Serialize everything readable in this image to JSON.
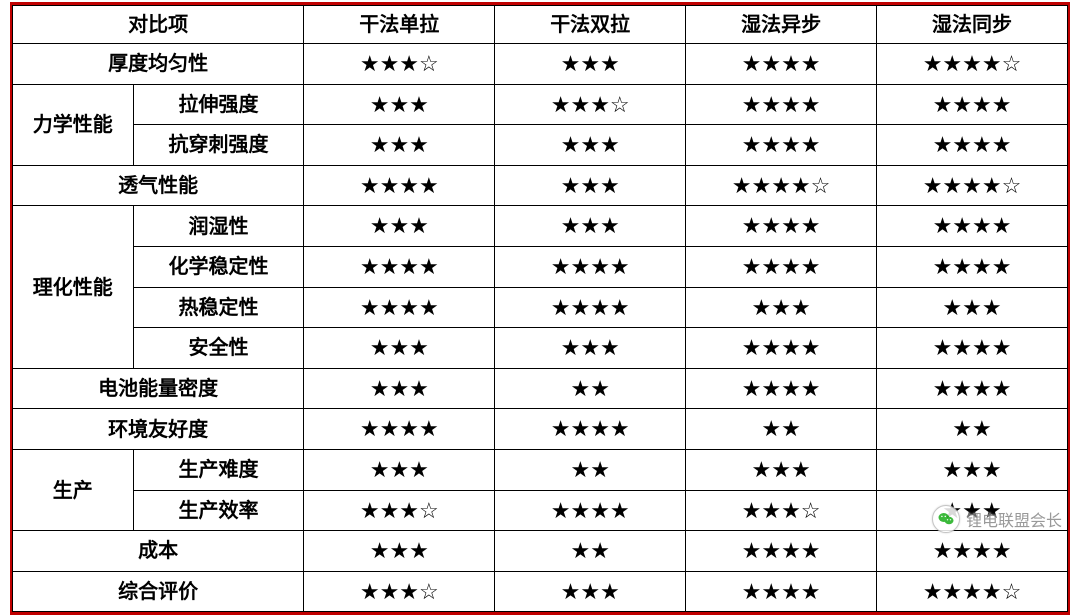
{
  "table": {
    "columns": [
      {
        "key": "compare",
        "label_main": "对比项",
        "label_sub": ""
      },
      {
        "key": "dry_uni",
        "label": "干法单拉"
      },
      {
        "key": "dry_bi",
        "label": "干法双拉"
      },
      {
        "key": "wet_async",
        "label": "湿法异步"
      },
      {
        "key": "wet_sync",
        "label": "湿法同步"
      }
    ],
    "header_compare": "对比项",
    "data_cols": [
      "干法单拉",
      "干法双拉",
      "湿法异步",
      "湿法同步"
    ],
    "rows": [
      {
        "group": null,
        "sub": "厚度均匀性",
        "span_both": true,
        "ratings": [
          3.5,
          3,
          4,
          4.5
        ]
      },
      {
        "group": "力学性能",
        "group_rowspan": 2,
        "sub": "拉伸强度",
        "ratings": [
          3,
          3.5,
          4,
          4
        ]
      },
      {
        "group": null,
        "sub": "抗穿刺强度",
        "ratings": [
          3,
          3,
          4,
          4
        ]
      },
      {
        "group": null,
        "sub": "透气性能",
        "span_both": true,
        "ratings": [
          4,
          3,
          4.5,
          4.5
        ]
      },
      {
        "group": "理化性能",
        "group_rowspan": 4,
        "sub": "润湿性",
        "ratings": [
          3,
          3,
          4,
          4
        ]
      },
      {
        "group": null,
        "sub": "化学稳定性",
        "ratings": [
          4,
          4,
          4,
          4
        ]
      },
      {
        "group": null,
        "sub": "热稳定性",
        "ratings": [
          4,
          4,
          3,
          3
        ]
      },
      {
        "group": null,
        "sub": "安全性",
        "ratings": [
          3,
          3,
          4,
          4
        ]
      },
      {
        "group": null,
        "sub": "电池能量密度",
        "span_both": true,
        "ratings": [
          3,
          2,
          4,
          4
        ]
      },
      {
        "group": null,
        "sub": "环境友好度",
        "span_both": true,
        "ratings": [
          4,
          4,
          2,
          2
        ]
      },
      {
        "group": "生产",
        "group_rowspan": 2,
        "sub": "生产难度",
        "ratings": [
          3,
          2,
          3,
          3
        ]
      },
      {
        "group": null,
        "sub": "生产效率",
        "ratings": [
          3.5,
          4,
          3.5,
          3
        ]
      },
      {
        "group": null,
        "sub": "成本",
        "span_both": true,
        "ratings": [
          3,
          2,
          4,
          4
        ]
      },
      {
        "group": null,
        "sub": "综合评价",
        "span_both": true,
        "ratings": [
          3.5,
          3,
          4,
          4.5
        ]
      }
    ],
    "star_full": "★",
    "star_empty": "☆",
    "text_color": "#000000",
    "border_color": "#000000",
    "frame_color": "#c00000",
    "background_color": "#ffffff",
    "font_family": "KaiTi",
    "font_size_pt": 15
  },
  "watermark": {
    "text": "锂电联盟会长",
    "icon_name": "wechat-icon",
    "icon_color": "#1aad19",
    "text_color": "#888888"
  }
}
